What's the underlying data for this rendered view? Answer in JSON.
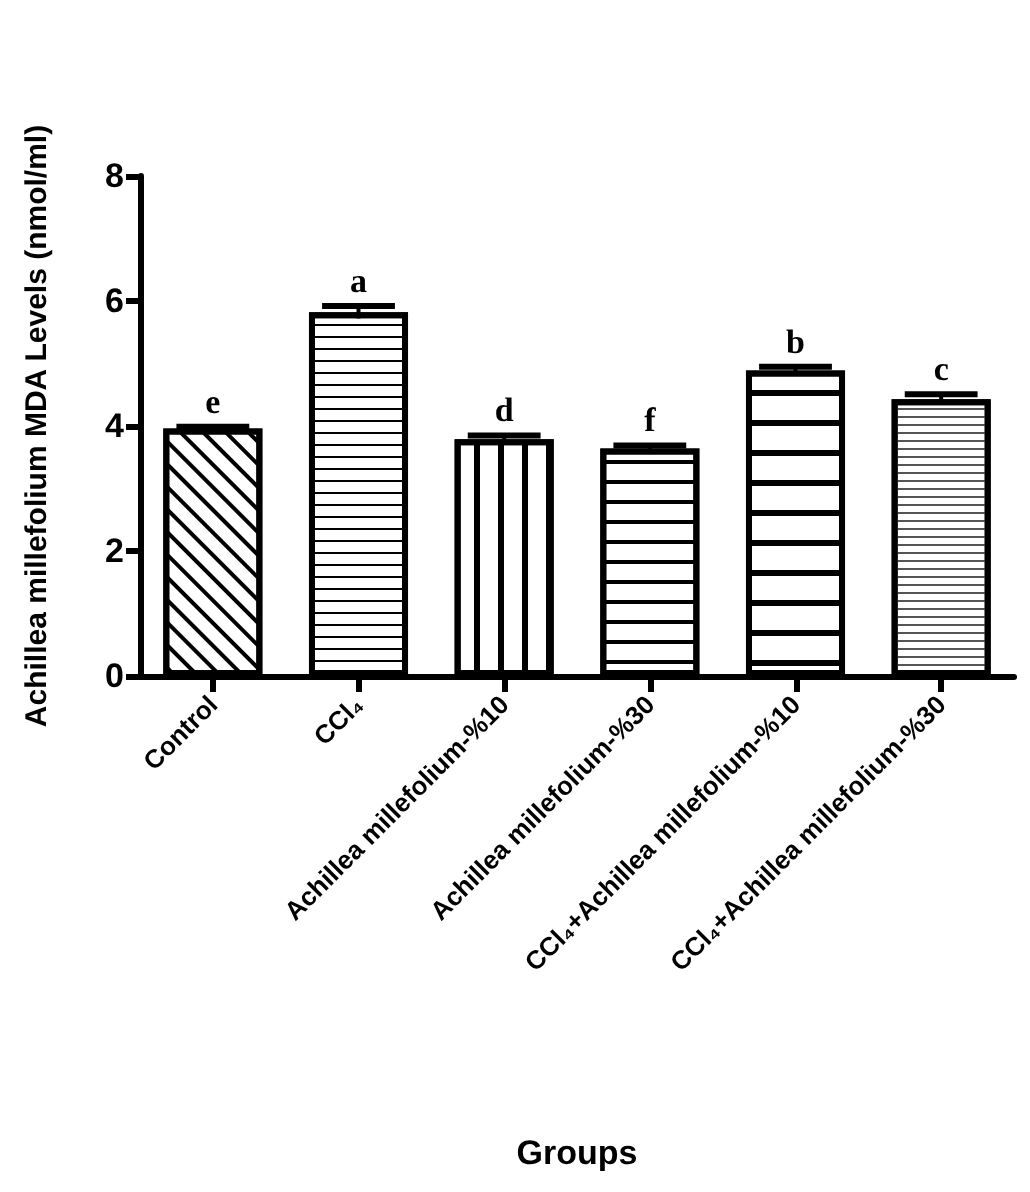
{
  "chart_data": {
    "type": "bar",
    "xlabel": "Groups",
    "ylabel": "Achillea millefolium MDA Levels (nmol/ml)",
    "categories": [
      "Control",
      "CCl₄",
      "Achillea millefolium-%10",
      "Achillea millefolium-%30",
      "CCl₄+Achillea millefolium-%10",
      "CCl₄+Achillea millefolium-%30"
    ],
    "values": [
      3.96,
      5.82,
      3.79,
      3.64,
      4.89,
      4.43
    ],
    "errors": [
      0.03,
      0.1,
      0.06,
      0.05,
      0.06,
      0.08
    ],
    "value_labels": [
      "e",
      "a",
      "d",
      "f",
      "b",
      "c"
    ],
    "color": "#ffffff",
    "ylim": [
      0,
      8
    ],
    "yticks": [
      0,
      2,
      4,
      6,
      8
    ]
  }
}
